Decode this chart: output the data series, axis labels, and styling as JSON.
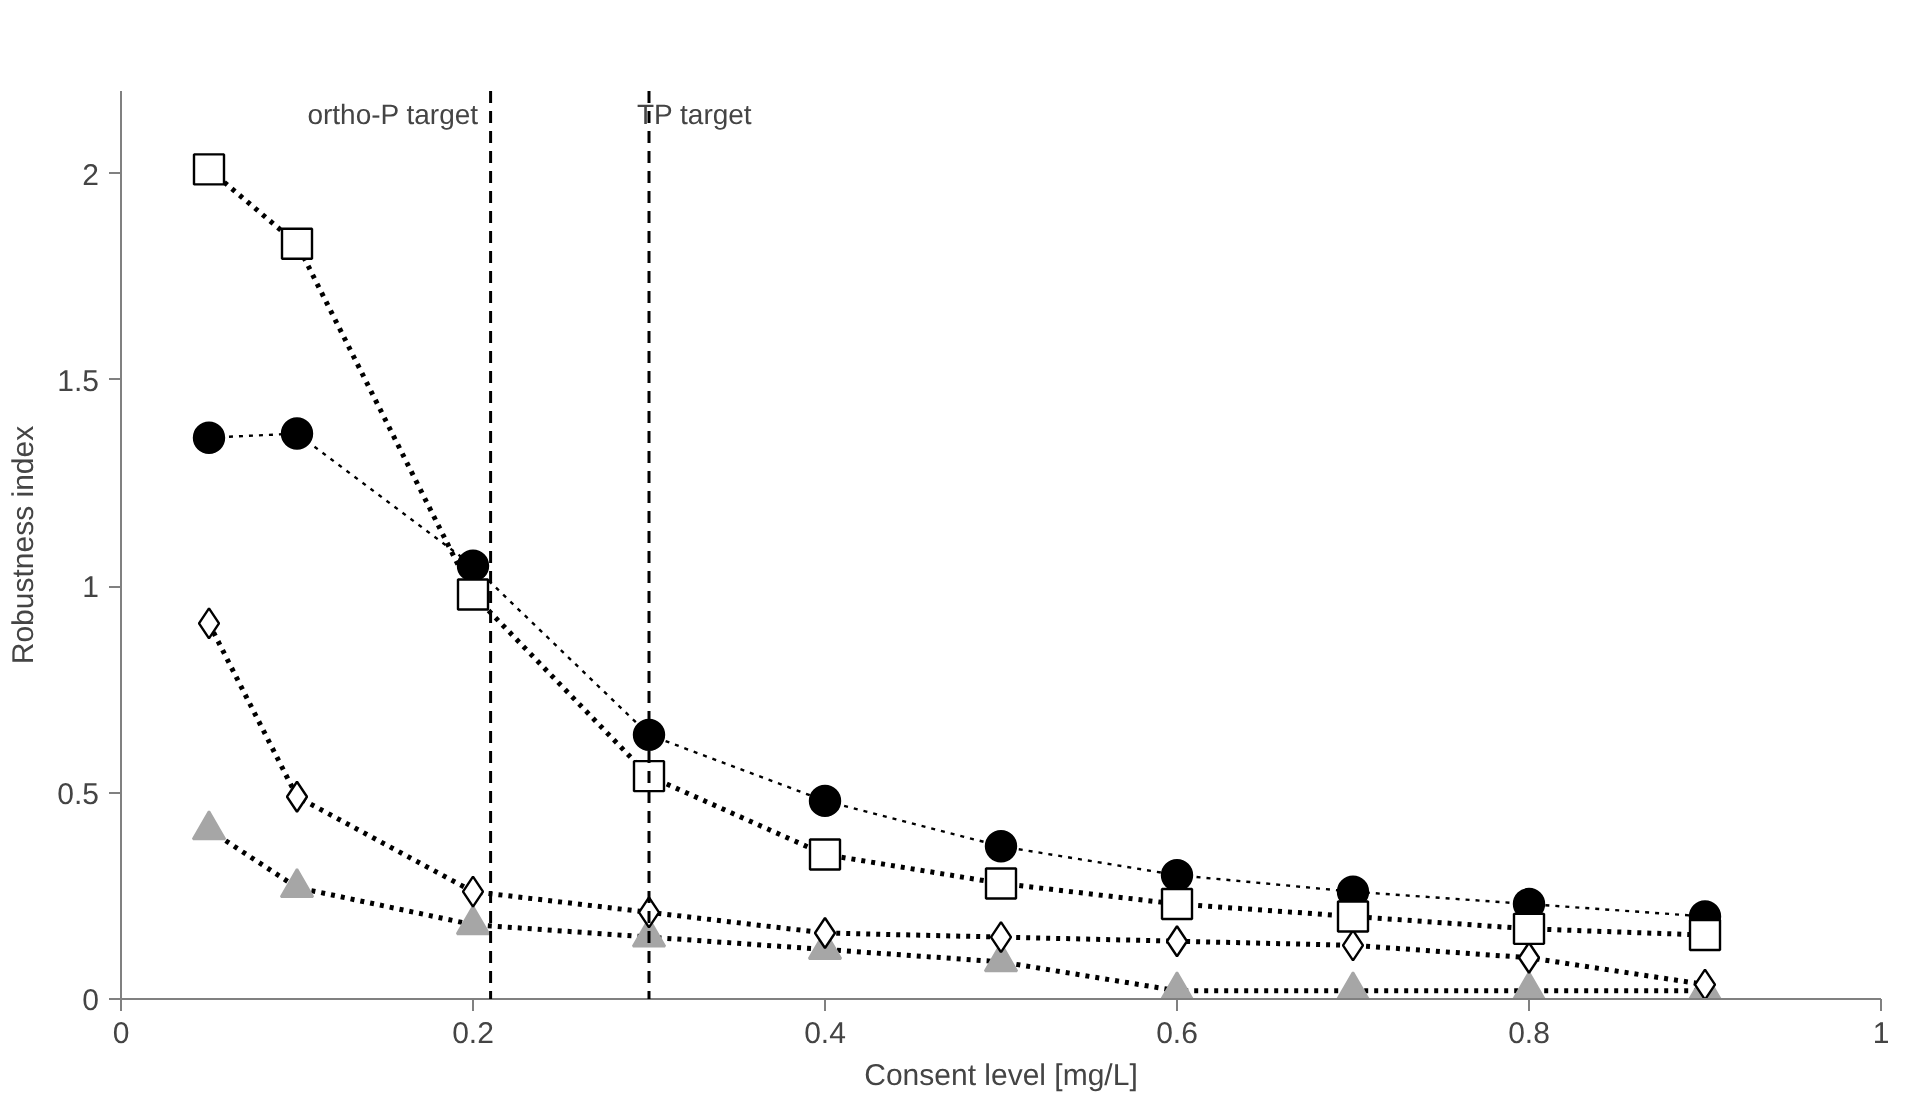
{
  "chart_data": {
    "type": "line",
    "xlabel": "Consent level [mg/L]",
    "ylabel": "Robustness index",
    "x": [
      0.05,
      0.1,
      0.2,
      0.3,
      0.4,
      0.5,
      0.6,
      0.7,
      0.8,
      0.9
    ],
    "series": [
      {
        "color": "#000000",
        "marker": "square",
        "line_style": "dotted",
        "values": [
          2.01,
          1.83,
          0.98,
          0.54,
          0.35,
          0.28,
          0.23,
          0.2,
          0.17,
          0.155
        ]
      },
      {
        "color": "#000000",
        "marker": "circle",
        "line_style": "dotted",
        "values": [
          1.36,
          1.37,
          1.05,
          0.64,
          0.48,
          0.37,
          0.3,
          0.26,
          0.23,
          0.2
        ]
      },
      {
        "color": "#000000",
        "marker": "diamond",
        "line_style": "dotted",
        "values": [
          0.91,
          0.49,
          0.26,
          0.21,
          0.16,
          0.15,
          0.14,
          0.13,
          0.1,
          0.035
        ]
      },
      {
        "color": "#a6a6a6",
        "marker": "triangle",
        "line_style": "dotted",
        "values": [
          0.41,
          0.27,
          0.18,
          0.15,
          0.12,
          0.09,
          0.02,
          0.02,
          0.02,
          0.02
        ]
      }
    ],
    "xlim": [
      0,
      1
    ],
    "xticks": [
      0,
      0.2,
      0.4,
      0.6,
      0.8,
      1
    ],
    "ylim": [
      0,
      2.2
    ],
    "yticks": [
      0,
      0.5,
      1,
      1.5,
      2
    ],
    "ref_lines": [
      {
        "axis": "x",
        "value": 0.21,
        "label": "ortho-P target",
        "line_style": "dashed"
      },
      {
        "axis": "x",
        "value": 0.3,
        "label": "TP target",
        "line_style": "dashed"
      }
    ],
    "grid": false
  }
}
